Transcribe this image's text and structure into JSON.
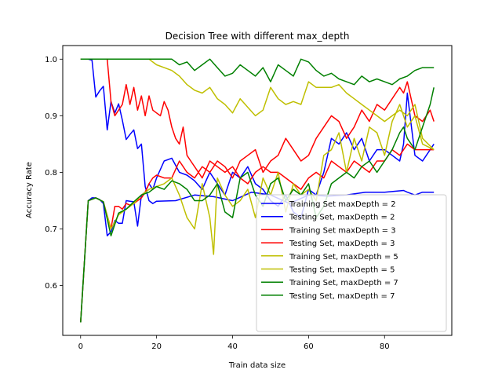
{
  "chart_data": {
    "type": "line",
    "title": "Decision Tree with different max_depth",
    "xlabel": "Train data size",
    "ylabel": "Accuracy Rate",
    "xlim": [
      -4.7,
      97.7
    ],
    "ylim": [
      0.512,
      1.024
    ],
    "xticks": [
      0,
      20,
      40,
      60,
      80
    ],
    "yticks": [
      0.6,
      0.7,
      0.8,
      0.9,
      1.0
    ],
    "ytick_labels": [
      "0.6",
      "0.7",
      "0.8",
      "0.9",
      "1.0"
    ],
    "grid": false,
    "legend_position": "lower right",
    "series": [
      {
        "name": "Training Set maxDepth = 2",
        "color": "#0000ff",
        "x": [
          0,
          2,
          3,
          4,
          5,
          6,
          7,
          8,
          9,
          10,
          11,
          12,
          13,
          14,
          15,
          16,
          17,
          18,
          19,
          20,
          25,
          30,
          35,
          40,
          45,
          50,
          55,
          60,
          65,
          70,
          75,
          80,
          85,
          86,
          88,
          90,
          93
        ],
        "y": [
          1.0,
          1.0,
          0.998,
          0.933,
          0.944,
          0.952,
          0.875,
          0.925,
          0.905,
          0.921,
          0.892,
          0.858,
          0.867,
          0.875,
          0.842,
          0.85,
          0.775,
          0.75,
          0.745,
          0.749,
          0.75,
          0.76,
          0.757,
          0.75,
          0.765,
          0.76,
          0.745,
          0.76,
          0.758,
          0.76,
          0.765,
          0.765,
          0.768,
          0.765,
          0.76,
          0.765,
          0.765
        ]
      },
      {
        "name": "Testing Set, maxDepth = 2",
        "color": "#0000ff",
        "x": [
          0,
          2,
          3,
          4,
          5,
          6,
          7,
          8,
          9,
          10,
          11,
          12,
          13,
          14,
          15,
          16,
          17,
          18,
          19,
          20,
          22,
          24,
          26,
          28,
          30,
          32,
          34,
          36,
          38,
          40,
          42,
          44,
          46,
          48,
          50,
          52,
          54,
          56,
          58,
          60,
          62,
          64,
          66,
          68,
          70,
          72,
          74,
          76,
          78,
          80,
          82,
          84,
          85,
          86,
          88,
          90,
          92,
          93
        ],
        "y": [
          0.535,
          0.75,
          0.755,
          0.755,
          0.752,
          0.745,
          0.688,
          0.695,
          0.715,
          0.71,
          0.71,
          0.75,
          0.749,
          0.748,
          0.705,
          0.76,
          0.765,
          0.78,
          0.77,
          0.79,
          0.82,
          0.825,
          0.8,
          0.795,
          0.785,
          0.77,
          0.8,
          0.78,
          0.76,
          0.8,
          0.79,
          0.81,
          0.78,
          0.77,
          0.75,
          0.74,
          0.76,
          0.73,
          0.72,
          0.77,
          0.76,
          0.8,
          0.86,
          0.85,
          0.87,
          0.84,
          0.86,
          0.82,
          0.84,
          0.84,
          0.83,
          0.82,
          0.85,
          0.94,
          0.83,
          0.82,
          0.84,
          0.85
        ]
      },
      {
        "name": "Training Set maxDepth = 3",
        "color": "#ff0000",
        "x": [
          0,
          2,
          4,
          6,
          7,
          8,
          9,
          10,
          11,
          12,
          13,
          14,
          15,
          16,
          17,
          18,
          19,
          20,
          21,
          22,
          23,
          24,
          25,
          26,
          27,
          28,
          29,
          30,
          32,
          34,
          36,
          38,
          40,
          42,
          44,
          46,
          48,
          50,
          52,
          54,
          56,
          58,
          60,
          62,
          64,
          66,
          68,
          70,
          72,
          74,
          76,
          78,
          80,
          82,
          84,
          86,
          88,
          90,
          93
        ],
        "y": [
          1.0,
          1.0,
          1.0,
          1.0,
          1.0,
          0.925,
          0.9,
          0.91,
          0.92,
          0.955,
          0.92,
          0.95,
          0.91,
          0.935,
          0.9,
          0.935,
          0.91,
          0.905,
          0.9,
          0.925,
          0.91,
          0.88,
          0.86,
          0.85,
          0.88,
          0.83,
          0.82,
          0.81,
          0.79,
          0.82,
          0.81,
          0.8,
          0.81,
          0.79,
          0.78,
          0.8,
          0.81,
          0.8,
          0.8,
          0.79,
          0.78,
          0.77,
          0.79,
          0.8,
          0.79,
          0.82,
          0.81,
          0.8,
          0.82,
          0.81,
          0.8,
          0.82,
          0.82,
          0.84,
          0.83,
          0.85,
          0.84,
          0.84,
          0.84
        ]
      },
      {
        "name": "Testing Set, maxDepth = 3",
        "color": "#ff0000",
        "x": [
          0,
          2,
          4,
          6,
          8,
          9,
          10,
          11,
          12,
          13,
          14,
          15,
          16,
          17,
          18,
          19,
          20,
          22,
          24,
          26,
          28,
          30,
          32,
          34,
          36,
          38,
          40,
          42,
          44,
          46,
          48,
          50,
          52,
          54,
          56,
          58,
          60,
          62,
          64,
          66,
          68,
          70,
          72,
          74,
          76,
          78,
          80,
          82,
          84,
          85,
          86,
          88,
          90,
          92,
          93
        ],
        "y": [
          0.535,
          0.75,
          0.755,
          0.748,
          0.7,
          0.74,
          0.74,
          0.735,
          0.745,
          0.742,
          0.745,
          0.75,
          0.755,
          0.765,
          0.78,
          0.79,
          0.795,
          0.79,
          0.79,
          0.82,
          0.8,
          0.79,
          0.81,
          0.8,
          0.82,
          0.81,
          0.79,
          0.82,
          0.83,
          0.84,
          0.8,
          0.82,
          0.83,
          0.86,
          0.84,
          0.82,
          0.83,
          0.86,
          0.88,
          0.9,
          0.89,
          0.86,
          0.88,
          0.91,
          0.89,
          0.92,
          0.91,
          0.93,
          0.95,
          0.94,
          0.96,
          0.9,
          0.89,
          0.91,
          0.89
        ]
      },
      {
        "name": "Training Set, maxDepth = 5",
        "color": "#bfbf00",
        "x": [
          0,
          2,
          4,
          6,
          8,
          10,
          12,
          14,
          16,
          18,
          20,
          22,
          24,
          26,
          28,
          30,
          32,
          34,
          36,
          38,
          40,
          42,
          44,
          46,
          48,
          50,
          52,
          54,
          56,
          58,
          60,
          62,
          64,
          66,
          68,
          70,
          72,
          74,
          76,
          78,
          80,
          82,
          84,
          86,
          88,
          90,
          93
        ],
        "y": [
          1.0,
          1.0,
          1.0,
          1.0,
          1.0,
          1.0,
          1.0,
          1.0,
          1.0,
          1.0,
          0.99,
          0.985,
          0.98,
          0.97,
          0.955,
          0.945,
          0.94,
          0.95,
          0.93,
          0.92,
          0.905,
          0.93,
          0.915,
          0.9,
          0.91,
          0.95,
          0.93,
          0.92,
          0.925,
          0.92,
          0.96,
          0.95,
          0.95,
          0.95,
          0.955,
          0.94,
          0.93,
          0.92,
          0.91,
          0.9,
          0.89,
          0.9,
          0.91,
          0.9,
          0.92,
          0.86,
          0.84
        ]
      },
      {
        "name": "Testing Set, maxDepth = 5",
        "color": "#bfbf00",
        "x": [
          0,
          2,
          4,
          6,
          8,
          10,
          12,
          14,
          16,
          18,
          20,
          22,
          24,
          26,
          28,
          30,
          32,
          34,
          35,
          36,
          38,
          40,
          42,
          44,
          46,
          48,
          50,
          52,
          54,
          56,
          58,
          60,
          62,
          64,
          66,
          68,
          70,
          72,
          74,
          76,
          78,
          80,
          82,
          84,
          86,
          88,
          90,
          93
        ],
        "y": [
          0.535,
          0.75,
          0.755,
          0.748,
          0.7,
          0.725,
          0.735,
          0.745,
          0.76,
          0.77,
          0.775,
          0.78,
          0.79,
          0.76,
          0.72,
          0.7,
          0.78,
          0.72,
          0.655,
          0.79,
          0.76,
          0.74,
          0.75,
          0.77,
          0.72,
          0.79,
          0.76,
          0.8,
          0.73,
          0.78,
          0.76,
          0.77,
          0.75,
          0.83,
          0.84,
          0.87,
          0.8,
          0.86,
          0.82,
          0.88,
          0.87,
          0.83,
          0.89,
          0.92,
          0.88,
          0.9,
          0.85,
          0.84
        ]
      },
      {
        "name": "Training Set, maxDepth = 7",
        "color": "#008000",
        "x": [
          0,
          2,
          4,
          6,
          8,
          10,
          12,
          14,
          16,
          18,
          20,
          22,
          24,
          26,
          28,
          30,
          32,
          34,
          36,
          38,
          40,
          42,
          44,
          46,
          48,
          50,
          52,
          54,
          56,
          58,
          60,
          62,
          64,
          66,
          68,
          70,
          72,
          74,
          76,
          78,
          80,
          82,
          84,
          86,
          88,
          90,
          93
        ],
        "y": [
          1.0,
          1.0,
          1.0,
          1.0,
          1.0,
          1.0,
          1.0,
          1.0,
          1.0,
          1.0,
          1.0,
          1.0,
          1.0,
          0.99,
          0.995,
          0.98,
          0.99,
          1.0,
          0.985,
          0.97,
          0.975,
          0.99,
          0.98,
          0.97,
          0.985,
          0.96,
          0.99,
          0.98,
          0.97,
          1.0,
          0.995,
          0.98,
          0.97,
          0.975,
          0.965,
          0.96,
          0.955,
          0.97,
          0.96,
          0.965,
          0.96,
          0.955,
          0.965,
          0.97,
          0.98,
          0.985,
          0.985
        ]
      },
      {
        "name": "Testing Set, maxDepth = 7",
        "color": "#008000",
        "x": [
          0,
          2,
          4,
          6,
          8,
          10,
          12,
          14,
          16,
          18,
          20,
          22,
          24,
          26,
          28,
          30,
          32,
          34,
          36,
          38,
          40,
          42,
          44,
          46,
          48,
          50,
          52,
          54,
          56,
          58,
          60,
          62,
          64,
          66,
          68,
          70,
          72,
          74,
          76,
          78,
          80,
          82,
          84,
          85,
          86,
          88,
          90,
          92,
          93
        ],
        "y": [
          0.535,
          0.75,
          0.755,
          0.748,
          0.688,
          0.728,
          0.735,
          0.748,
          0.76,
          0.765,
          0.775,
          0.77,
          0.785,
          0.78,
          0.77,
          0.75,
          0.75,
          0.76,
          0.78,
          0.73,
          0.72,
          0.79,
          0.8,
          0.76,
          0.74,
          0.78,
          0.79,
          0.75,
          0.77,
          0.76,
          0.78,
          0.72,
          0.74,
          0.78,
          0.79,
          0.8,
          0.79,
          0.81,
          0.82,
          0.8,
          0.82,
          0.84,
          0.87,
          0.88,
          0.86,
          0.84,
          0.88,
          0.92,
          0.95
        ]
      }
    ]
  }
}
